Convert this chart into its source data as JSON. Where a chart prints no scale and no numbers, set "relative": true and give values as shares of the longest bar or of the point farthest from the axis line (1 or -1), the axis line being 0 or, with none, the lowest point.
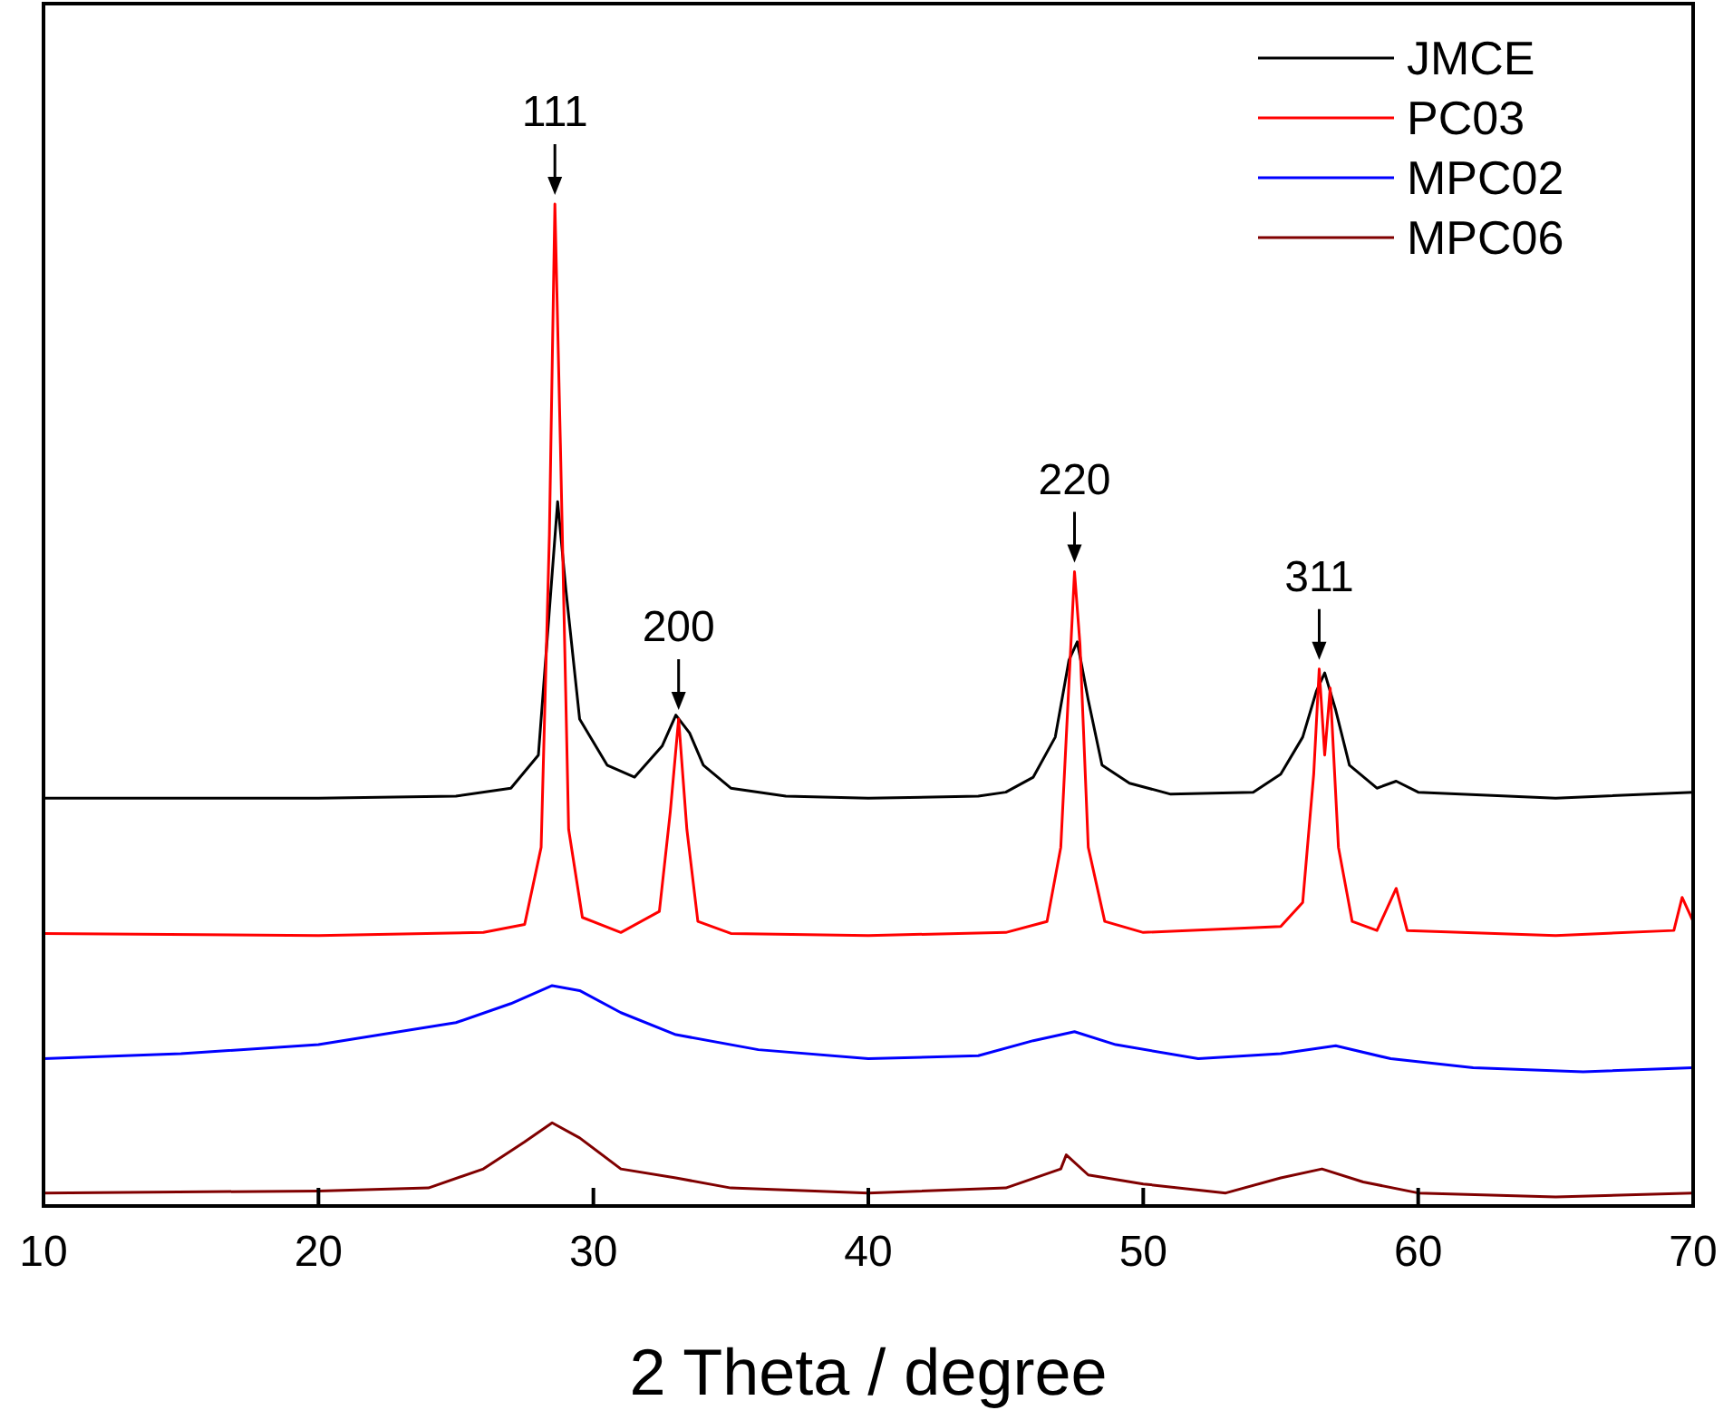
{
  "chart_data": {
    "type": "line",
    "relative": true,
    "xlabel": "2 Theta / degree",
    "xlim": [
      10,
      70
    ],
    "xticks": [
      10,
      20,
      30,
      40,
      50,
      60,
      70
    ],
    "legend": "top right",
    "line_style": "solid",
    "series": [
      {
        "name": "JMCE",
        "color": "#000000",
        "x": [
          10,
          20,
          25,
          27,
          28,
          28.7,
          29,
          29.5,
          30.5,
          31.5,
          32.5,
          33,
          33.5,
          34,
          35,
          37,
          40,
          44,
          45,
          46,
          46.8,
          47.3,
          47.6,
          48,
          48.5,
          49.5,
          51,
          54,
          55,
          55.8,
          56.3,
          56.6,
          57,
          57.5,
          58.5,
          59.2,
          60,
          65,
          70
        ],
        "values": [
          0.407,
          0.407,
          0.409,
          0.417,
          0.45,
          0.703,
          0.615,
          0.486,
          0.44,
          0.428,
          0.459,
          0.49,
          0.472,
          0.44,
          0.417,
          0.409,
          0.407,
          0.409,
          0.413,
          0.428,
          0.468,
          0.545,
          0.563,
          0.505,
          0.44,
          0.422,
          0.411,
          0.413,
          0.431,
          0.468,
          0.514,
          0.532,
          0.495,
          0.44,
          0.417,
          0.424,
          0.413,
          0.407,
          0.413
        ]
      },
      {
        "name": "PC03",
        "color": "#ff0000",
        "x": [
          10,
          20,
          26,
          27.5,
          28.1,
          28.4,
          28.6,
          28.8,
          29.1,
          29.6,
          31,
          32.4,
          32.8,
          33.1,
          33.4,
          33.8,
          35,
          40,
          45,
          46.5,
          47,
          47.3,
          47.5,
          47.7,
          48,
          48.6,
          50,
          55,
          55.8,
          56.2,
          56.4,
          56.6,
          56.8,
          57.1,
          57.6,
          58.5,
          59.2,
          59.6,
          65,
          69.3,
          69.6,
          70
        ],
        "values": [
          0.272,
          0.27,
          0.273,
          0.281,
          0.358,
          0.67,
          1,
          0.761,
          0.376,
          0.288,
          0.273,
          0.294,
          0.394,
          0.486,
          0.376,
          0.284,
          0.272,
          0.27,
          0.273,
          0.284,
          0.358,
          0.523,
          0.633,
          0.56,
          0.358,
          0.284,
          0.273,
          0.279,
          0.303,
          0.431,
          0.536,
          0.45,
          0.517,
          0.358,
          0.284,
          0.275,
          0.317,
          0.275,
          0.27,
          0.275,
          0.308,
          0.284
        ]
      },
      {
        "name": "MPC02",
        "color": "#0000ff",
        "x": [
          10,
          15,
          20,
          25,
          27,
          28.5,
          29.5,
          31,
          33,
          36,
          40,
          44,
          46,
          47.5,
          49,
          52,
          55,
          57,
          59,
          62,
          66,
          70
        ],
        "values": [
          0.147,
          0.152,
          0.161,
          0.183,
          0.202,
          0.22,
          0.215,
          0.193,
          0.171,
          0.156,
          0.147,
          0.15,
          0.165,
          0.174,
          0.161,
          0.147,
          0.152,
          0.16,
          0.147,
          0.138,
          0.134,
          0.138
        ]
      },
      {
        "name": "MPC06",
        "color": "#800000",
        "x": [
          10,
          20,
          24,
          26,
          27.5,
          28.5,
          29.5,
          31,
          33,
          35,
          40,
          45,
          47,
          47.2,
          48,
          50,
          53,
          55,
          56.5,
          58,
          60,
          65,
          70
        ],
        "values": [
          0.013,
          0.015,
          0.018,
          0.037,
          0.064,
          0.083,
          0.068,
          0.037,
          0.028,
          0.018,
          0.013,
          0.018,
          0.037,
          0.051,
          0.031,
          0.022,
          0.013,
          0.028,
          0.037,
          0.024,
          0.013,
          0.009,
          0.013
        ]
      }
    ],
    "annotations": [
      {
        "text": "111",
        "x": 28.6,
        "y": 1
      },
      {
        "text": "200",
        "x": 33.1,
        "y": 0.486
      },
      {
        "text": "220",
        "x": 47.5,
        "y": 0.633
      },
      {
        "text": "311",
        "x": 56.4,
        "y": 0.536
      }
    ]
  }
}
